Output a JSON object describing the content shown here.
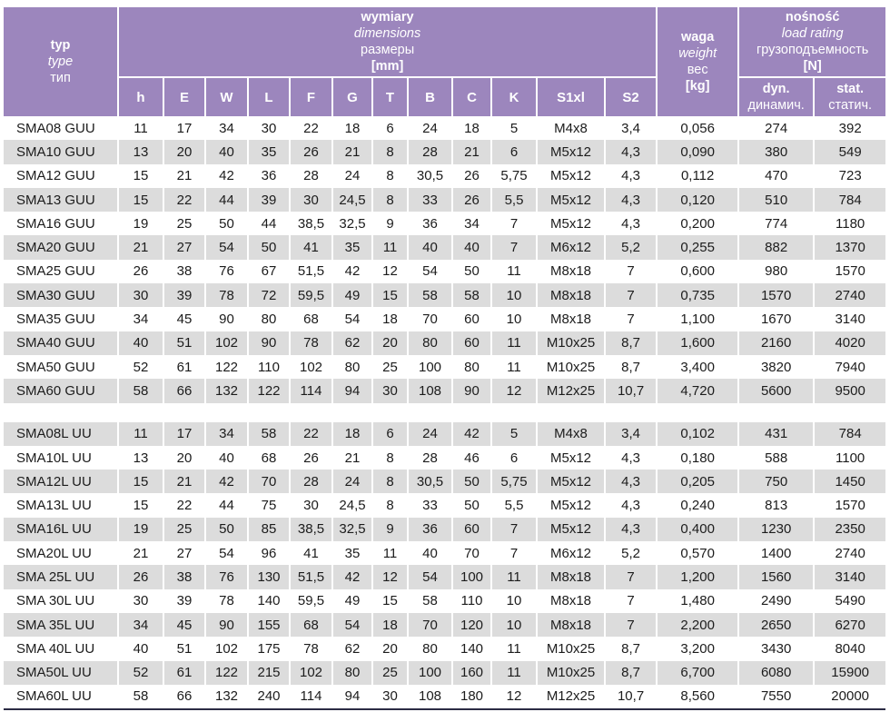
{
  "colors": {
    "header_purple": "#9c86bd",
    "row_shaded_gray": "#dcdcdc",
    "row_white": "#ffffff",
    "text_dark": "#1c1c1c",
    "bottom_border_navy": "#2b2b44",
    "separator_white": "#ffffff"
  },
  "header": {
    "type_col": [
      "typ",
      "type",
      "тип"
    ],
    "dim_group": [
      "wymiary",
      "dimensions",
      "размеры",
      "[mm]"
    ],
    "dim_cols": [
      "h",
      "E",
      "W",
      "L",
      "F",
      "G",
      "T",
      "B",
      "C",
      "K",
      "S1xl",
      "S2"
    ],
    "weight_col": [
      "waga",
      "weight",
      "вес",
      "[kg]"
    ],
    "load_group": [
      "nośność",
      "load rating",
      "грузоподъемность",
      "[N]"
    ],
    "load_cols": [
      [
        "dyn.",
        "динамич."
      ],
      [
        "stat.",
        "статич."
      ]
    ]
  },
  "sections": [
    {
      "rows": [
        {
          "type": "SMA08 GUU",
          "values": [
            "11",
            "17",
            "34",
            "30",
            "22",
            "18",
            "6",
            "24",
            "18",
            "5",
            "M4x8",
            "3,4",
            "0,056",
            "274",
            "392"
          ]
        },
        {
          "type": "SMA10 GUU",
          "values": [
            "13",
            "20",
            "40",
            "35",
            "26",
            "21",
            "8",
            "28",
            "21",
            "6",
            "M5x12",
            "4,3",
            "0,090",
            "380",
            "549"
          ]
        },
        {
          "type": "SMA12 GUU",
          "values": [
            "15",
            "21",
            "42",
            "36",
            "28",
            "24",
            "8",
            "30,5",
            "26",
            "5,75",
            "M5x12",
            "4,3",
            "0,112",
            "470",
            "723"
          ]
        },
        {
          "type": "SMA13 GUU",
          "values": [
            "15",
            "22",
            "44",
            "39",
            "30",
            "24,5",
            "8",
            "33",
            "26",
            "5,5",
            "M5x12",
            "4,3",
            "0,120",
            "510",
            "784"
          ]
        },
        {
          "type": "SMA16 GUU",
          "values": [
            "19",
            "25",
            "50",
            "44",
            "38,5",
            "32,5",
            "9",
            "36",
            "34",
            "7",
            "M5x12",
            "4,3",
            "0,200",
            "774",
            "1180"
          ]
        },
        {
          "type": "SMA20 GUU",
          "values": [
            "21",
            "27",
            "54",
            "50",
            "41",
            "35",
            "11",
            "40",
            "40",
            "7",
            "M6x12",
            "5,2",
            "0,255",
            "882",
            "1370"
          ]
        },
        {
          "type": "SMA25 GUU",
          "values": [
            "26",
            "38",
            "76",
            "67",
            "51,5",
            "42",
            "12",
            "54",
            "50",
            "11",
            "M8x18",
            "7",
            "0,600",
            "980",
            "1570"
          ]
        },
        {
          "type": "SMA30 GUU",
          "values": [
            "30",
            "39",
            "78",
            "72",
            "59,5",
            "49",
            "15",
            "58",
            "58",
            "10",
            "M8x18",
            "7",
            "0,735",
            "1570",
            "2740"
          ]
        },
        {
          "type": "SMA35 GUU",
          "values": [
            "34",
            "45",
            "90",
            "80",
            "68",
            "54",
            "18",
            "70",
            "60",
            "10",
            "M8x18",
            "7",
            "1,100",
            "1670",
            "3140"
          ]
        },
        {
          "type": "SMA40 GUU",
          "values": [
            "40",
            "51",
            "102",
            "90",
            "78",
            "62",
            "20",
            "80",
            "60",
            "11",
            "M10x25",
            "8,7",
            "1,600",
            "2160",
            "4020"
          ]
        },
        {
          "type": "SMA50 GUU",
          "values": [
            "52",
            "61",
            "122",
            "110",
            "102",
            "80",
            "25",
            "100",
            "80",
            "11",
            "M10x25",
            "8,7",
            "3,400",
            "3820",
            "7940"
          ]
        },
        {
          "type": "SMA60 GUU",
          "values": [
            "58",
            "66",
            "132",
            "122",
            "114",
            "94",
            "30",
            "108",
            "90",
            "12",
            "M12x25",
            "10,7",
            "4,720",
            "5600",
            "9500"
          ]
        }
      ]
    },
    {
      "rows": [
        {
          "type": "SMA08L UU",
          "values": [
            "11",
            "17",
            "34",
            "58",
            "22",
            "18",
            "6",
            "24",
            "42",
            "5",
            "M4x8",
            "3,4",
            "0,102",
            "431",
            "784"
          ]
        },
        {
          "type": "SMA10L UU",
          "values": [
            "13",
            "20",
            "40",
            "68",
            "26",
            "21",
            "8",
            "28",
            "46",
            "6",
            "M5x12",
            "4,3",
            "0,180",
            "588",
            "1100"
          ]
        },
        {
          "type": "SMA12L UU",
          "values": [
            "15",
            "21",
            "42",
            "70",
            "28",
            "24",
            "8",
            "30,5",
            "50",
            "5,75",
            "M5x12",
            "4,3",
            "0,205",
            "750",
            "1450"
          ]
        },
        {
          "type": "SMA13L UU",
          "values": [
            "15",
            "22",
            "44",
            "75",
            "30",
            "24,5",
            "8",
            "33",
            "50",
            "5,5",
            "M5x12",
            "4,3",
            "0,240",
            "813",
            "1570"
          ]
        },
        {
          "type": "SMA16L UU",
          "values": [
            "19",
            "25",
            "50",
            "85",
            "38,5",
            "32,5",
            "9",
            "36",
            "60",
            "7",
            "M5x12",
            "4,3",
            "0,400",
            "1230",
            "2350"
          ]
        },
        {
          "type": "SMA20L UU",
          "values": [
            "21",
            "27",
            "54",
            "96",
            "41",
            "35",
            "11",
            "40",
            "70",
            "7",
            "M6x12",
            "5,2",
            "0,570",
            "1400",
            "2740"
          ]
        },
        {
          "type": "SMA 25L UU",
          "values": [
            "26",
            "38",
            "76",
            "130",
            "51,5",
            "42",
            "12",
            "54",
            "100",
            "11",
            "M8x18",
            "7",
            "1,200",
            "1560",
            "3140"
          ]
        },
        {
          "type": "SMA 30L UU",
          "values": [
            "30",
            "39",
            "78",
            "140",
            "59,5",
            "49",
            "15",
            "58",
            "110",
            "10",
            "M8x18",
            "7",
            "1,480",
            "2490",
            "5490"
          ]
        },
        {
          "type": "SMA 35L UU",
          "values": [
            "34",
            "45",
            "90",
            "155",
            "68",
            "54",
            "18",
            "70",
            "120",
            "10",
            "M8x18",
            "7",
            "2,200",
            "2650",
            "6270"
          ]
        },
        {
          "type": "SMA 40L UU",
          "values": [
            "40",
            "51",
            "102",
            "175",
            "78",
            "62",
            "20",
            "80",
            "140",
            "11",
            "M10x25",
            "8,7",
            "3,200",
            "3430",
            "8040"
          ]
        },
        {
          "type": "SMA50L UU",
          "values": [
            "52",
            "61",
            "122",
            "215",
            "102",
            "80",
            "25",
            "100",
            "160",
            "11",
            "M10x25",
            "8,7",
            "6,700",
            "6080",
            "15900"
          ]
        },
        {
          "type": "SMA60L UU",
          "values": [
            "58",
            "66",
            "132",
            "240",
            "114",
            "94",
            "30",
            "108",
            "180",
            "12",
            "M12x25",
            "10,7",
            "8,560",
            "7550",
            "20000"
          ]
        }
      ]
    }
  ]
}
